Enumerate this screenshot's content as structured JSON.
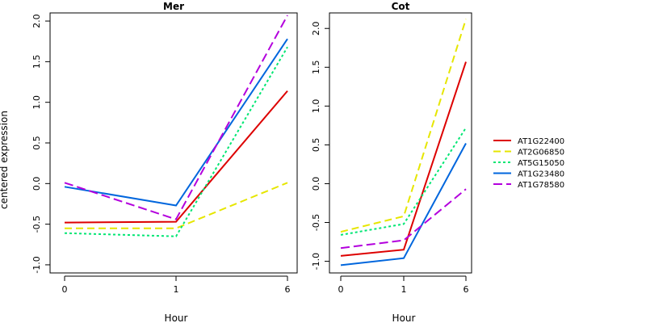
{
  "chart_data": [
    {
      "type": "line",
      "title": "Mer",
      "xlabel": "Hour",
      "ylabel": "centered expression",
      "categories": [
        "0",
        "1",
        "6"
      ],
      "ylim": [
        -1.1,
        2.1
      ],
      "yticks": [
        -1.0,
        -0.5,
        0.0,
        0.5,
        1.0,
        1.5,
        2.0
      ],
      "ytick_labels": [
        "-1.0",
        "-0.5",
        "0.0",
        "0.5",
        "1.0",
        "1.5",
        "2.0"
      ],
      "series": [
        {
          "name": "AT1G22400",
          "values": [
            -0.48,
            -0.47,
            1.14
          ]
        },
        {
          "name": "AT2G06850",
          "values": [
            -0.55,
            -0.55,
            0.01
          ]
        },
        {
          "name": "AT5G15050",
          "values": [
            -0.61,
            -0.65,
            1.68
          ]
        },
        {
          "name": "AT1G23480",
          "values": [
            -0.04,
            -0.27,
            1.78
          ]
        },
        {
          "name": "AT1G78580",
          "values": [
            0.01,
            -0.44,
            2.07
          ]
        }
      ]
    },
    {
      "type": "line",
      "title": "Cot",
      "xlabel": "Hour",
      "ylabel": "",
      "categories": [
        "0",
        "1",
        "6"
      ],
      "ylim": [
        -1.15,
        2.2
      ],
      "yticks": [
        -1.0,
        -0.5,
        0.0,
        0.5,
        1.0,
        1.5,
        2.0
      ],
      "ytick_labels": [
        "-1.0",
        "-0.5",
        "0.0",
        "0.5",
        "1.0",
        "1.5",
        "2.0"
      ],
      "series": [
        {
          "name": "AT1G22400",
          "values": [
            -0.93,
            -0.85,
            1.57
          ]
        },
        {
          "name": "AT2G06850",
          "values": [
            -0.62,
            -0.42,
            2.12
          ]
        },
        {
          "name": "AT5G15050",
          "values": [
            -0.66,
            -0.52,
            0.72
          ]
        },
        {
          "name": "AT1G23480",
          "values": [
            -1.05,
            -0.96,
            0.52
          ]
        },
        {
          "name": "AT1G78580",
          "values": [
            -0.83,
            -0.73,
            -0.07
          ]
        }
      ]
    }
  ],
  "legend": {
    "placement": "right",
    "entries": [
      {
        "name": "AT1G22400",
        "color": "#dd0000",
        "dash": "solid"
      },
      {
        "name": "AT2G06850",
        "color": "#e6e600",
        "dash": "dashed"
      },
      {
        "name": "AT5G15050",
        "color": "#00e673",
        "dash": "dotted"
      },
      {
        "name": "AT1G23480",
        "color": "#0066dd",
        "dash": "solid"
      },
      {
        "name": "AT1G78580",
        "color": "#b300dd",
        "dash": "longdash"
      }
    ]
  },
  "style": {
    "series_colors": [
      "#dd0000",
      "#e6e600",
      "#00e673",
      "#0066dd",
      "#b300dd"
    ],
    "series_dash": [
      "solid",
      "dashed",
      "dotted",
      "solid",
      "longdash"
    ]
  }
}
